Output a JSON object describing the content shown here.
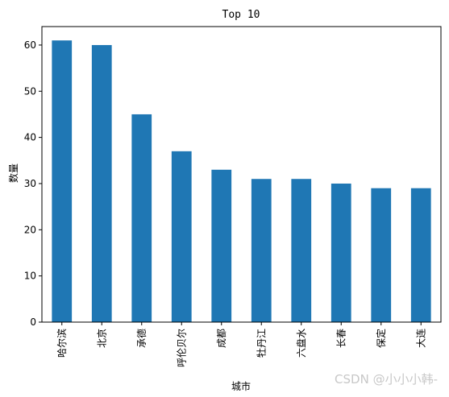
{
  "chart_data": {
    "type": "bar",
    "title": "Top 10",
    "xlabel": "城市",
    "ylabel": "数量",
    "categories": [
      "哈尔滨",
      "北京",
      "承德",
      "呼伦贝尔",
      "成都",
      "牡丹江",
      "六盘水",
      "长春",
      "保定",
      "大连"
    ],
    "values": [
      61,
      60,
      45,
      37,
      33,
      31,
      31,
      30,
      29,
      29
    ],
    "ylim": [
      0,
      64
    ],
    "yticks": [
      0,
      10,
      20,
      30,
      40,
      50,
      60
    ],
    "bar_color": "#1f77b4",
    "grid": false,
    "legend": "none"
  },
  "watermark": "CSDN @小小小韩-"
}
